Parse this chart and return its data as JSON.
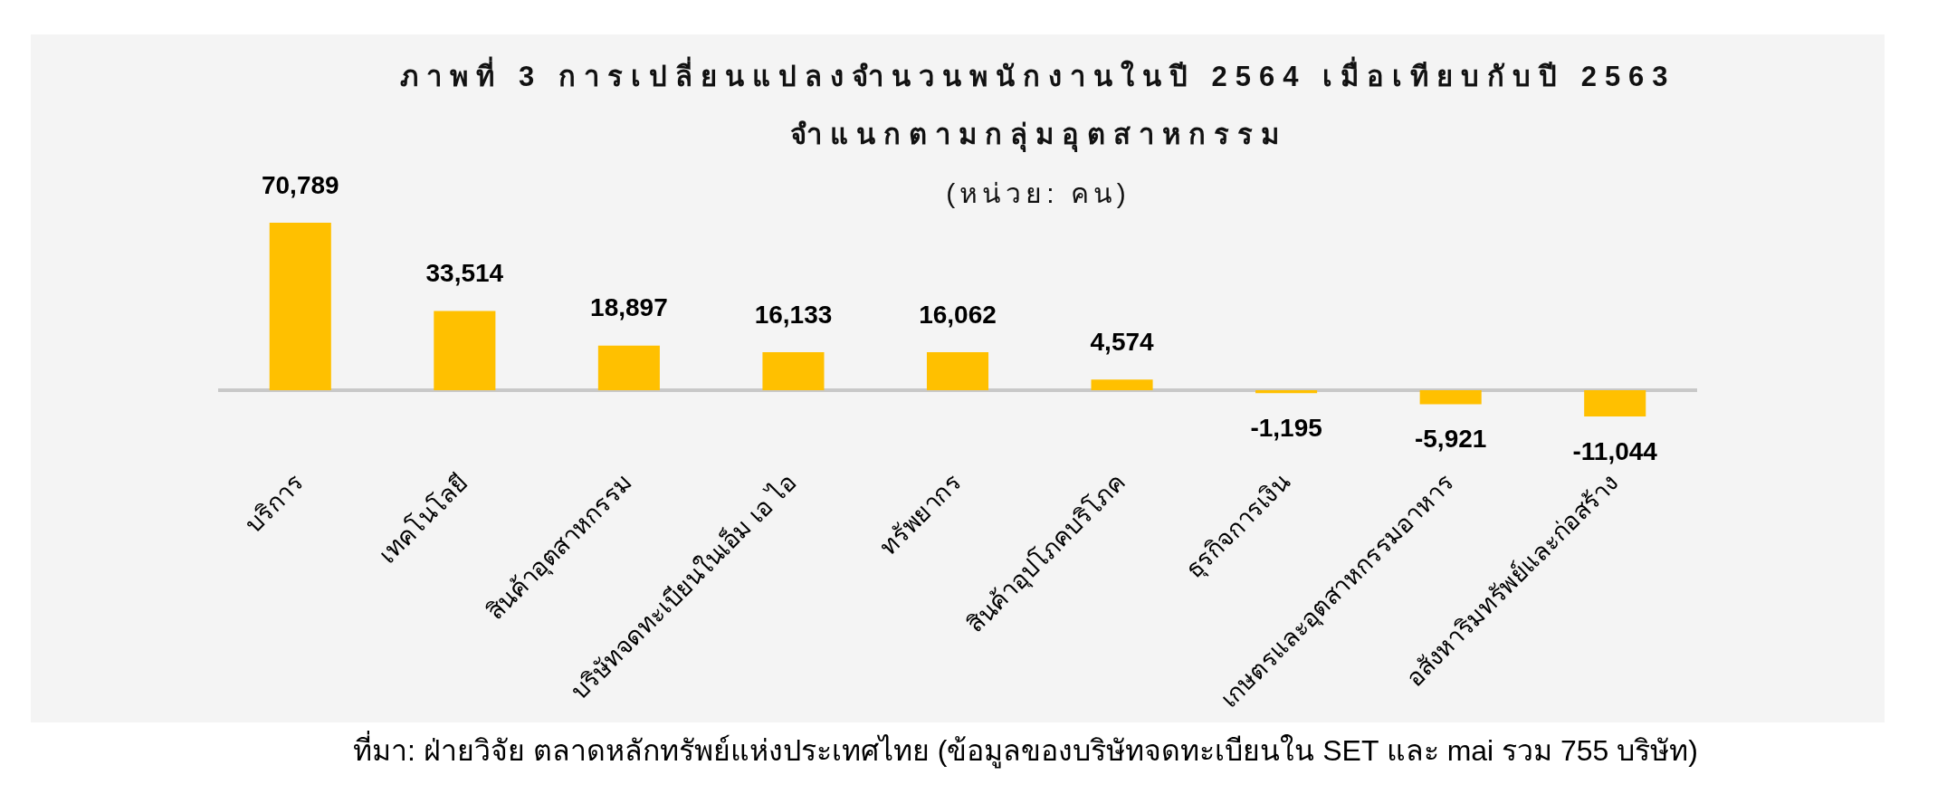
{
  "chart_data": {
    "type": "bar",
    "title": "ภาพที่ 3 การเปลี่ยนแปลงจำนวนพนักงานในปี 2564 เมื่อเทียบกับปี 2563\nจำแนกตามกลุ่มอุตสาหกรรม",
    "subtitle": "(หน่วย: คน)",
    "categories": [
      "บริการ",
      "เทคโนโลยี",
      "สินค้าอุตสาหกรรม",
      "บริษัทจดทะเบียนในเอ็ม เอ ไอ",
      "ทรัพยากร",
      "สินค้าอุปโภคบริโภค",
      "ธุรกิจการเงิน",
      "เกษตรและอุตสาหกรรมอาหาร",
      "อสังหาริมทรัพย์และก่อสร้าง"
    ],
    "values": [
      70789,
      33514,
      18897,
      16133,
      16062,
      4574,
      -1195,
      -5921,
      -11044
    ],
    "value_labels": [
      "70,789",
      "33,514",
      "18,897",
      "16,133",
      "16,062",
      "4,574",
      "-1,195",
      "-5,921",
      "-11,044"
    ],
    "color": "#ffc000",
    "tick_labels": "x",
    "annotations": [
      "ที่มา: ฝ่ายวิจัย ตลาดหลักทรัพย์แห่งประเทศไทย (ข้อมูลของบริษัทจดทะเบียนใน SET และ mai รวม 755 บริษัท)"
    ]
  }
}
